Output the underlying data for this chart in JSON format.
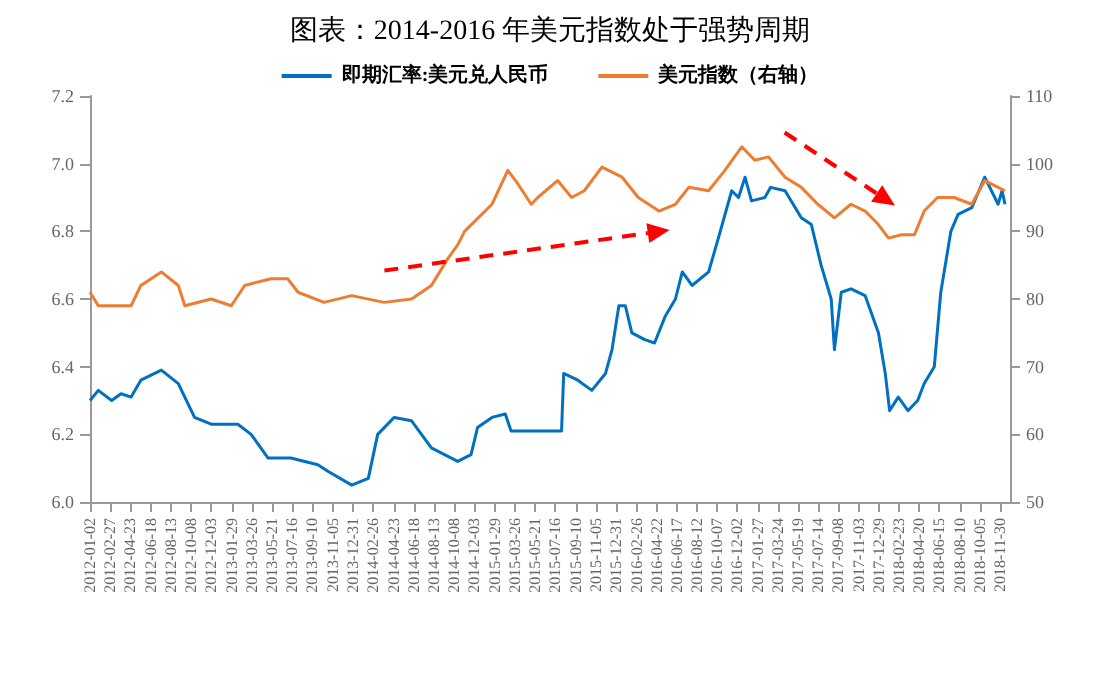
{
  "chart_data": {
    "type": "line",
    "title": "图表：2014-2016 年美元指数处于强势周期",
    "legend": "top",
    "grid": false,
    "marker": "none",
    "line_style": "solid",
    "xlim": [
      "2012-01-02",
      "2018-12-28"
    ],
    "xticks": [
      "2012-01-02",
      "2012-02-27",
      "2012-04-23",
      "2012-06-18",
      "2012-08-13",
      "2012-10-08",
      "2012-12-03",
      "2013-01-29",
      "2013-03-26",
      "2013-05-21",
      "2013-07-16",
      "2013-09-10",
      "2013-11-05",
      "2013-12-31",
      "2014-02-26",
      "2014-04-23",
      "2014-06-18",
      "2014-08-13",
      "2014-10-08",
      "2014-12-03",
      "2015-01-29",
      "2015-03-26",
      "2015-05-21",
      "2015-07-16",
      "2015-09-10",
      "2015-11-05",
      "2015-12-31",
      "2016-02-26",
      "2016-04-22",
      "2016-06-17",
      "2016-08-12",
      "2016-10-07",
      "2016-12-02",
      "2017-01-27",
      "2017-03-24",
      "2017-05-19",
      "2017-07-14",
      "2017-09-08",
      "2017-11-03",
      "2017-12-29",
      "2018-02-23",
      "2018-04-20",
      "2018-06-15",
      "2018-08-10",
      "2018-10-05",
      "2018-11-30"
    ],
    "ylim": [
      6,
      7.2
    ],
    "yticks": [
      {
        "value": 6,
        "label": "6.0"
      },
      6.2,
      6.4,
      6.6,
      6.8,
      {
        "value": 7,
        "label": "7.0"
      },
      7.2
    ],
    "y2lim": [
      50,
      110
    ],
    "y2ticks": [
      50,
      60,
      70,
      80,
      90,
      100,
      110
    ],
    "series": [
      {
        "name": "即期汇率:美元兑人民币",
        "color": "#0070c0",
        "x": [
          "2012-01-02",
          "2012-01-25",
          "2012-03-02",
          "2012-03-28",
          "2012-04-25",
          "2012-05-22",
          "2012-07-18",
          "2012-09-03",
          "2012-10-18",
          "2012-12-03",
          "2013-02-15",
          "2013-03-24",
          "2013-05-10",
          "2013-07-12",
          "2013-09-25",
          "2013-10-24",
          "2013-12-28",
          "2014-02-12",
          "2014-03-10",
          "2014-04-25",
          "2014-06-12",
          "2014-08-06",
          "2014-10-18",
          "2014-11-24",
          "2014-12-12",
          "2015-01-21",
          "2015-02-27",
          "2015-03-15",
          "2015-05-28",
          "2015-08-02",
          "2015-08-08",
          "2015-09-16",
          "2015-10-25",
          "2015-12-02",
          "2015-12-20",
          "2016-01-08",
          "2016-01-26",
          "2016-02-13",
          "2016-03-20",
          "2016-04-16",
          "2016-05-16",
          "2016-06-13",
          "2016-07-02",
          "2016-07-29",
          "2016-09-13",
          "2016-10-10",
          "2016-11-16",
          "2016-12-05",
          "2016-12-23",
          "2017-01-10",
          "2017-02-16",
          "2017-03-04",
          "2017-04-13",
          "2017-05-28",
          "2017-06-25",
          "2017-07-22",
          "2017-08-19",
          "2017-08-28",
          "2017-09-16",
          "2017-10-13",
          "2017-11-21",
          "2017-12-28",
          "2018-01-16",
          "2018-01-28",
          "2018-02-21",
          "2018-03-20",
          "2018-04-16",
          "2018-05-04",
          "2018-06-01",
          "2018-06-19",
          "2018-07-17",
          "2018-08-06",
          "2018-09-13",
          "2018-10-19",
          "2018-11-25",
          "2018-12-06",
          "2018-12-14"
        ],
        "values": [
          6.3,
          6.33,
          6.3,
          6.32,
          6.31,
          6.36,
          6.39,
          6.35,
          6.25,
          6.23,
          6.23,
          6.2,
          6.13,
          6.13,
          6.11,
          6.09,
          6.05,
          6.07,
          6.2,
          6.25,
          6.24,
          6.16,
          6.12,
          6.14,
          6.22,
          6.25,
          6.26,
          6.21,
          6.21,
          6.21,
          6.38,
          6.36,
          6.33,
          6.38,
          6.45,
          6.58,
          6.58,
          6.5,
          6.48,
          6.47,
          6.55,
          6.6,
          6.68,
          6.64,
          6.68,
          6.78,
          6.92,
          6.9,
          6.96,
          6.89,
          6.9,
          6.93,
          6.92,
          6.84,
          6.82,
          6.7,
          6.6,
          6.45,
          6.62,
          6.63,
          6.61,
          6.5,
          6.38,
          6.27,
          6.31,
          6.27,
          6.3,
          6.35,
          6.4,
          6.62,
          6.8,
          6.85,
          6.87,
          6.96,
          6.88,
          6.92,
          6.88
        ]
      },
      {
        "name": "美元指数（右轴）",
        "color": "#ed7d31",
        "axis": "y2",
        "x": [
          "2012-01-02",
          "2012-01-25",
          "2012-03-02",
          "2012-04-25",
          "2012-05-22",
          "2012-07-18",
          "2012-09-03",
          "2012-09-21",
          "2012-12-03",
          "2013-01-28",
          "2013-03-06",
          "2013-05-18",
          "2013-07-03",
          "2013-08-01",
          "2013-10-12",
          "2013-12-28",
          "2014-03-28",
          "2014-06-12",
          "2014-08-06",
          "2014-09-21",
          "2014-10-18",
          "2014-11-06",
          "2015-01-21",
          "2015-03-06",
          "2015-04-03",
          "2015-05-10",
          "2015-05-28",
          "2015-07-22",
          "2015-08-30",
          "2015-10-04",
          "2015-11-22",
          "2016-01-17",
          "2016-03-02",
          "2016-04-28",
          "2016-06-13",
          "2016-07-20",
          "2016-09-13",
          "2016-10-28",
          "2016-12-14",
          "2017-01-19",
          "2017-02-26",
          "2017-04-13",
          "2017-05-28",
          "2017-07-13",
          "2017-08-28",
          "2017-10-13",
          "2017-11-21",
          "2017-12-28",
          "2018-01-25",
          "2018-03-02",
          "2018-04-07",
          "2018-05-04",
          "2018-06-10",
          "2018-07-26",
          "2018-09-13",
          "2018-10-19",
          "2018-11-25",
          "2018-12-14"
        ],
        "values": [
          81,
          79,
          79,
          79,
          82,
          84,
          82,
          79,
          80,
          79,
          82,
          83,
          83,
          81,
          79.5,
          80.5,
          79.5,
          80,
          82,
          86,
          88,
          90,
          94,
          99,
          97,
          94,
          95,
          97.5,
          95,
          96,
          99.5,
          98,
          95,
          93,
          94,
          96.5,
          96,
          99,
          102.5,
          100.5,
          101,
          98,
          96.5,
          94,
          92,
          94,
          93,
          91,
          89,
          89.5,
          89.5,
          93,
          95,
          95,
          94,
          97.5,
          96.5,
          96
        ]
      }
    ]
  }
}
